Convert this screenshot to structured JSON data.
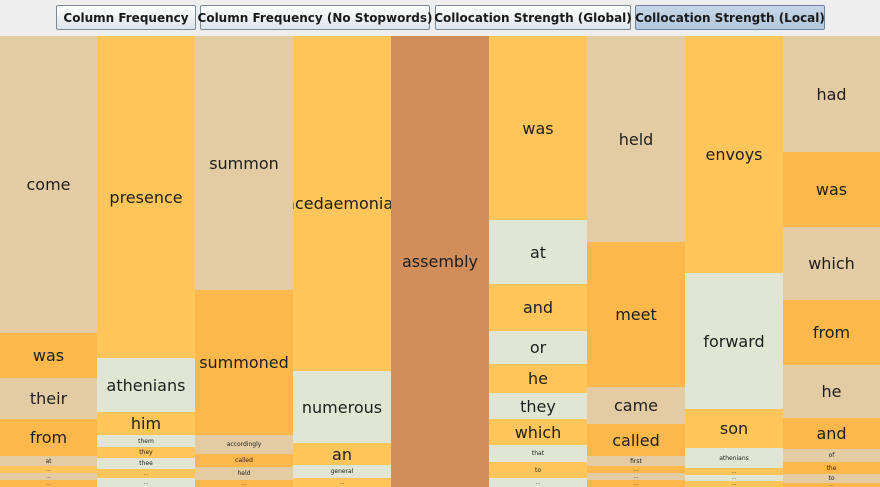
{
  "toolbar": {
    "buttons": [
      {
        "label": "Column Frequency",
        "selected": false
      },
      {
        "label": "Column Frequency (No Stopwords)",
        "selected": false
      },
      {
        "label": "Collocation Strength (Global)",
        "selected": false
      },
      {
        "label": "Collocation Strength (Local)",
        "selected": true
      }
    ]
  },
  "colors": {
    "tan": "#e3cba3",
    "yellow": "#fec55b",
    "orange": "#fdb84c",
    "pale": "#e0e6d3",
    "pivot": "#d28e5a"
  },
  "columns": [
    {
      "words": [
        {
          "w": "come",
          "c": "tan"
        },
        {
          "w": "was",
          "c": "orange"
        },
        {
          "w": "their",
          "c": "tan"
        },
        {
          "w": "from",
          "c": "orange"
        },
        {
          "w": "at",
          "c": "tan"
        },
        {
          "w": "...",
          "c": "yellow"
        },
        {
          "w": "...",
          "c": "tan"
        },
        {
          "w": "...",
          "c": "orange"
        }
      ]
    },
    {
      "words": [
        {
          "w": "presence",
          "c": "yellow"
        },
        {
          "w": "athenians",
          "c": "pale"
        },
        {
          "w": "him",
          "c": "yellow"
        },
        {
          "w": "them",
          "c": "pale"
        },
        {
          "w": "they",
          "c": "yellow"
        },
        {
          "w": "thee",
          "c": "pale"
        },
        {
          "w": "...",
          "c": "yellow"
        },
        {
          "w": "...",
          "c": "pale"
        }
      ]
    },
    {
      "words": [
        {
          "w": "summon",
          "c": "tan"
        },
        {
          "w": "summoned",
          "c": "orange"
        },
        {
          "w": "accordingly",
          "c": "tan"
        },
        {
          "w": "called",
          "c": "orange"
        },
        {
          "w": "held",
          "c": "tan"
        },
        {
          "w": "...",
          "c": "orange"
        }
      ]
    },
    {
      "words": [
        {
          "w": "lacedaemonian",
          "c": "yellow"
        },
        {
          "w": "numerous",
          "c": "pale"
        },
        {
          "w": "an",
          "c": "yellow"
        },
        {
          "w": "general",
          "c": "pale"
        },
        {
          "w": "...",
          "c": "yellow"
        }
      ]
    },
    {
      "words": [
        {
          "w": "assembly",
          "c": "pivot"
        }
      ]
    },
    {
      "words": [
        {
          "w": "was",
          "c": "yellow"
        },
        {
          "w": "at",
          "c": "pale"
        },
        {
          "w": "and",
          "c": "yellow"
        },
        {
          "w": "or",
          "c": "pale"
        },
        {
          "w": "he",
          "c": "yellow"
        },
        {
          "w": "they",
          "c": "pale"
        },
        {
          "w": "which",
          "c": "yellow"
        },
        {
          "w": "that",
          "c": "pale"
        },
        {
          "w": "to",
          "c": "yellow"
        },
        {
          "w": "...",
          "c": "pale"
        }
      ]
    },
    {
      "words": [
        {
          "w": "held",
          "c": "tan"
        },
        {
          "w": "meet",
          "c": "orange"
        },
        {
          "w": "came",
          "c": "tan"
        },
        {
          "w": "called",
          "c": "orange"
        },
        {
          "w": "first",
          "c": "tan"
        },
        {
          "w": "...",
          "c": "orange"
        },
        {
          "w": "...",
          "c": "tan"
        },
        {
          "w": "...",
          "c": "orange"
        }
      ]
    },
    {
      "words": [
        {
          "w": "envoys",
          "c": "yellow"
        },
        {
          "w": "forward",
          "c": "pale"
        },
        {
          "w": "son",
          "c": "yellow"
        },
        {
          "w": "athenians",
          "c": "pale"
        },
        {
          "w": "...",
          "c": "yellow"
        },
        {
          "w": "...",
          "c": "pale"
        },
        {
          "w": "...",
          "c": "yellow"
        }
      ]
    },
    {
      "words": [
        {
          "w": "had",
          "c": "tan"
        },
        {
          "w": "was",
          "c": "orange"
        },
        {
          "w": "which",
          "c": "tan"
        },
        {
          "w": "from",
          "c": "orange"
        },
        {
          "w": "he",
          "c": "tan"
        },
        {
          "w": "and",
          "c": "orange"
        },
        {
          "w": "of",
          "c": "tan"
        },
        {
          "w": "the",
          "c": "orange"
        },
        {
          "w": "to",
          "c": "tan"
        },
        {
          "w": "...",
          "c": "orange"
        }
      ]
    }
  ]
}
